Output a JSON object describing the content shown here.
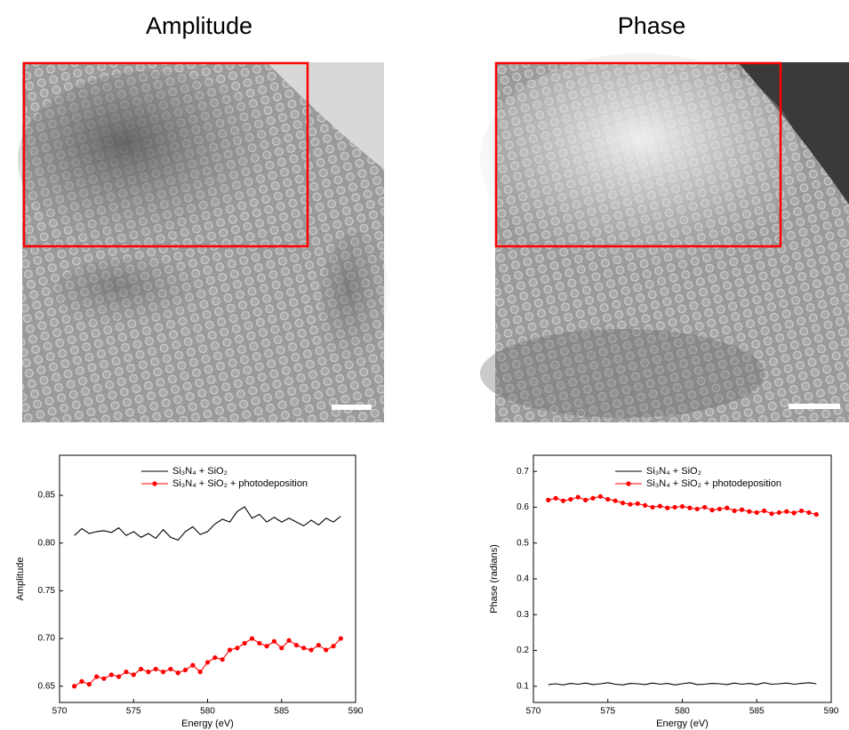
{
  "panels": [
    {
      "title": "Amplitude"
    },
    {
      "title": "Phase"
    }
  ],
  "chart_data": [
    {
      "type": "line",
      "xlabel": "Energy (eV)",
      "ylabel": "Amplitude",
      "xlim": [
        570,
        590
      ],
      "xticks": [
        570,
        575,
        580,
        585,
        590
      ],
      "ylim": [
        0.633,
        0.892
      ],
      "yticks": [
        0.65,
        {
          "value": 0.7,
          "label": "0.70"
        },
        0.75,
        {
          "value": 0.8,
          "label": "0.80"
        },
        0.85
      ],
      "x": [
        571,
        571.5,
        572,
        572.5,
        573,
        573.5,
        574,
        574.5,
        575,
        575.5,
        576,
        576.5,
        577,
        577.5,
        578,
        578.5,
        579,
        579.5,
        580,
        580.5,
        581,
        581.5,
        582,
        582.5,
        583,
        583.5,
        584,
        584.5,
        585,
        585.5,
        586,
        586.5,
        587,
        587.5,
        588,
        588.5,
        589
      ],
      "series": [
        {
          "name": "Si₃N₄ + SiO₂",
          "color": "#000000",
          "values": [
            0.808,
            0.815,
            0.81,
            0.812,
            0.813,
            0.811,
            0.816,
            0.808,
            0.812,
            0.806,
            0.81,
            0.805,
            0.814,
            0.806,
            0.803,
            0.812,
            0.817,
            0.809,
            0.812,
            0.82,
            0.825,
            0.822,
            0.833,
            0.838,
            0.826,
            0.83,
            0.822,
            0.827,
            0.822,
            0.826,
            0.822,
            0.818,
            0.824,
            0.819,
            0.826,
            0.822,
            0.828
          ]
        },
        {
          "name": "Si₃N₄ + SiO₂ + photodeposition",
          "color": "#ff0000",
          "marker": "circle",
          "values": [
            0.65,
            0.655,
            0.652,
            0.66,
            0.658,
            0.662,
            0.66,
            0.665,
            0.662,
            0.668,
            0.665,
            0.668,
            0.665,
            0.668,
            0.664,
            0.667,
            0.672,
            0.665,
            0.675,
            0.68,
            0.678,
            0.688,
            0.69,
            0.695,
            0.7,
            0.695,
            0.692,
            0.697,
            0.69,
            0.698,
            0.693,
            0.69,
            0.688,
            0.693,
            0.688,
            0.692,
            0.7
          ]
        }
      ]
    },
    {
      "type": "line",
      "xlabel": "Energy (eV)",
      "ylabel": "Phase (radians)",
      "xlim": [
        570,
        590
      ],
      "xticks": [
        570,
        575,
        580,
        585,
        590
      ],
      "ylim": [
        0.055,
        0.745
      ],
      "yticks": [
        0.1,
        0.2,
        0.3,
        0.4,
        0.5,
        0.6,
        0.7
      ],
      "x": [
        571,
        571.5,
        572,
        572.5,
        573,
        573.5,
        574,
        574.5,
        575,
        575.5,
        576,
        576.5,
        577,
        577.5,
        578,
        578.5,
        579,
        579.5,
        580,
        580.5,
        581,
        581.5,
        582,
        582.5,
        583,
        583.5,
        584,
        584.5,
        585,
        585.5,
        586,
        586.5,
        587,
        587.5,
        588,
        588.5,
        589
      ],
      "series": [
        {
          "name": "Si₃N₄ + SiO₂",
          "color": "#000000",
          "values": [
            0.105,
            0.107,
            0.104,
            0.108,
            0.106,
            0.109,
            0.105,
            0.107,
            0.11,
            0.106,
            0.104,
            0.108,
            0.107,
            0.105,
            0.109,
            0.106,
            0.108,
            0.104,
            0.107,
            0.11,
            0.105,
            0.106,
            0.108,
            0.107,
            0.105,
            0.109,
            0.106,
            0.108,
            0.105,
            0.11,
            0.106,
            0.107,
            0.109,
            0.106,
            0.108,
            0.11,
            0.107
          ]
        },
        {
          "name": "Si₃N₄ + SiO₂ + photodeposition",
          "color": "#ff0000",
          "marker": "circle",
          "values": [
            0.62,
            0.625,
            0.618,
            0.622,
            0.628,
            0.62,
            0.625,
            0.63,
            0.622,
            0.618,
            0.612,
            0.608,
            0.61,
            0.605,
            0.6,
            0.603,
            0.598,
            0.6,
            0.602,
            0.598,
            0.595,
            0.6,
            0.592,
            0.595,
            0.598,
            0.59,
            0.593,
            0.588,
            0.585,
            0.59,
            0.582,
            0.585,
            0.588,
            0.584,
            0.59,
            0.585,
            0.58
          ]
        }
      ]
    }
  ]
}
